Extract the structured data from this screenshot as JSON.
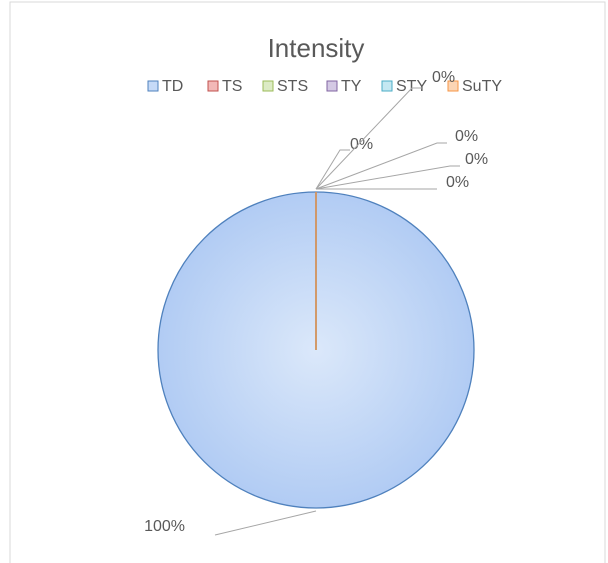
{
  "chart_data": {
    "type": "pie",
    "title": "Intensity",
    "categories": [
      "TD",
      "TS",
      "STS",
      "TY",
      "STY",
      "SuTY"
    ],
    "values": [
      100,
      0,
      0,
      0,
      0,
      0
    ],
    "value_labels": [
      "100%",
      "0%",
      "0%",
      "0%",
      "0%",
      "0%"
    ],
    "colors": [
      "#4f81bd",
      "#c0504d",
      "#9bbb59",
      "#8064a2",
      "#4bacc6",
      "#f79646"
    ],
    "fills": [
      "#c6daf7",
      "#f2b8b7",
      "#dcebc4",
      "#d4c9e4",
      "#c4e8f2",
      "#fbd5b5"
    ],
    "legend": "top"
  }
}
